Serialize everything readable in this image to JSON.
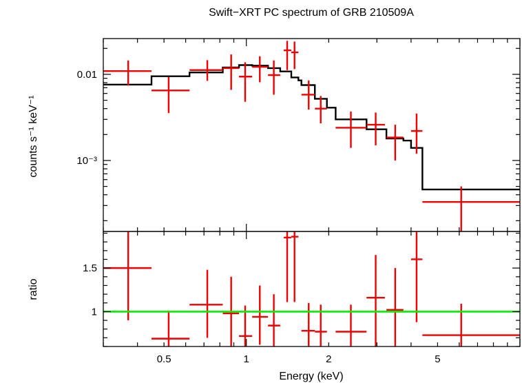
{
  "chart_data": [
    {
      "type": "scatter",
      "title": "Swift−XRT PC spectrum of GRB 210509A",
      "ylabel": "counts s⁻¹ keV⁻¹",
      "xlabel": "",
      "xscale": "log",
      "yscale": "log",
      "xlim": [
        0.3,
        10
      ],
      "ylim": [
        0.00015,
        0.026
      ],
      "yticks": [
        {
          "value": 0.01,
          "label": "0.01"
        },
        {
          "value": 0.001,
          "label": "10⁻³"
        }
      ],
      "series": [
        {
          "role": "data",
          "color": "#ee0000",
          "points": [
            {
              "x": 0.37,
              "xlo": 0.3,
              "xhi": 0.45,
              "y": 0.0109,
              "ylo": 0.0074,
              "yhi": 0.0145
            },
            {
              "x": 0.52,
              "xlo": 0.45,
              "xhi": 0.62,
              "y": 0.0065,
              "ylo": 0.00355,
              "yhi": 0.0093
            },
            {
              "x": 0.72,
              "xlo": 0.62,
              "xhi": 0.82,
              "y": 0.0112,
              "ylo": 0.0084,
              "yhi": 0.0146
            },
            {
              "x": 0.88,
              "xlo": 0.82,
              "xhi": 0.94,
              "y": 0.0118,
              "ylo": 0.0066,
              "yhi": 0.017
            },
            {
              "x": 0.99,
              "xlo": 0.94,
              "xhi": 1.05,
              "y": 0.0094,
              "ylo": 0.0048,
              "yhi": 0.0138
            },
            {
              "x": 1.12,
              "xlo": 1.05,
              "xhi": 1.2,
              "y": 0.0122,
              "ylo": 0.0081,
              "yhi": 0.0162
            },
            {
              "x": 1.26,
              "xlo": 1.2,
              "xhi": 1.33,
              "y": 0.0098,
              "ylo": 0.0058,
              "yhi": 0.0145
            },
            {
              "x": 1.41,
              "xlo": 1.37,
              "xhi": 1.46,
              "y": 0.019,
              "ylo": 0.0112,
              "yhi": 0.0245
            },
            {
              "x": 1.5,
              "xlo": 1.46,
              "xhi": 1.55,
              "y": 0.018,
              "ylo": 0.0115,
              "yhi": 0.024
            },
            {
              "x": 1.69,
              "xlo": 1.59,
              "xhi": 1.78,
              "y": 0.0058,
              "ylo": 0.0039,
              "yhi": 0.0085
            },
            {
              "x": 1.87,
              "xlo": 1.78,
              "xhi": 1.97,
              "y": 0.004,
              "ylo": 0.0027,
              "yhi": 0.0056
            },
            {
              "x": 2.41,
              "xlo": 2.12,
              "xhi": 2.75,
              "y": 0.0024,
              "ylo": 0.0014,
              "yhi": 0.0037
            },
            {
              "x": 2.97,
              "xlo": 2.75,
              "xhi": 3.21,
              "y": 0.0026,
              "ylo": 0.0015,
              "yhi": 0.0036
            },
            {
              "x": 3.5,
              "xlo": 3.25,
              "xhi": 3.75,
              "y": 0.00185,
              "ylo": 0.001,
              "yhi": 0.0026
            },
            {
              "x": 4.19,
              "xlo": 4.0,
              "xhi": 4.4,
              "y": 0.0022,
              "ylo": 0.0012,
              "yhi": 0.0035
            },
            {
              "x": 6.1,
              "xlo": 4.4,
              "xhi": 10.0,
              "y": 0.00033,
              "ylo": 0.00015,
              "yhi": 0.0005
            }
          ]
        },
        {
          "role": "model",
          "color": "#000000",
          "steps": [
            {
              "x0": 0.3,
              "x1": 0.45,
              "y": 0.0076
            },
            {
              "x0": 0.45,
              "x1": 0.62,
              "y": 0.0095
            },
            {
              "x0": 0.62,
              "x1": 0.82,
              "y": 0.0105
            },
            {
              "x0": 0.82,
              "x1": 0.94,
              "y": 0.012
            },
            {
              "x0": 0.94,
              "x1": 1.05,
              "y": 0.0128
            },
            {
              "x0": 1.05,
              "x1": 1.2,
              "y": 0.0126
            },
            {
              "x0": 1.2,
              "x1": 1.33,
              "y": 0.0118
            },
            {
              "x0": 1.33,
              "x1": 1.46,
              "y": 0.0108
            },
            {
              "x0": 1.46,
              "x1": 1.55,
              "y": 0.0092
            },
            {
              "x0": 1.55,
              "x1": 1.59,
              "y": 0.0085
            },
            {
              "x0": 1.59,
              "x1": 1.78,
              "y": 0.0075
            },
            {
              "x0": 1.78,
              "x1": 1.97,
              "y": 0.0052
            },
            {
              "x0": 1.97,
              "x1": 2.12,
              "y": 0.0041
            },
            {
              "x0": 2.12,
              "x1": 2.75,
              "y": 0.003
            },
            {
              "x0": 2.75,
              "x1": 3.25,
              "y": 0.0023
            },
            {
              "x0": 3.25,
              "x1": 3.75,
              "y": 0.0018
            },
            {
              "x0": 3.75,
              "x1": 4.0,
              "y": 0.0017
            },
            {
              "x0": 4.0,
              "x1": 4.4,
              "y": 0.0014
            },
            {
              "x0": 4.4,
              "x1": 10.0,
              "y": 0.00046
            }
          ]
        }
      ]
    },
    {
      "type": "scatter",
      "title": "",
      "ylabel": "ratio",
      "xlabel": "Energy (keV)",
      "xscale": "log",
      "yscale": "linear",
      "xlim": [
        0.3,
        10
      ],
      "ylim": [
        0.6,
        1.92
      ],
      "xticks": [
        {
          "value": 0.5,
          "label": "0.5"
        },
        {
          "value": 1,
          "label": "1"
        },
        {
          "value": 2,
          "label": "2"
        },
        {
          "value": 5,
          "label": "5"
        }
      ],
      "yticks": [
        {
          "value": 1,
          "label": "1"
        },
        {
          "value": 1.5,
          "label": "1.5"
        }
      ],
      "reference_line": {
        "y": 1.0,
        "color": "#00ee00"
      },
      "series": [
        {
          "role": "ratio",
          "color": "#ee0000",
          "points": [
            {
              "x": 0.37,
              "xlo": 0.3,
              "xhi": 0.45,
              "y": 1.5,
              "ylo": 0.9,
              "yhi": 1.95
            },
            {
              "x": 0.52,
              "xlo": 0.45,
              "xhi": 0.62,
              "y": 0.69,
              "ylo": 0.6,
              "yhi": 1.01
            },
            {
              "x": 0.72,
              "xlo": 0.62,
              "xhi": 0.82,
              "y": 1.08,
              "ylo": 0.7,
              "yhi": 1.48
            },
            {
              "x": 0.88,
              "xlo": 0.82,
              "xhi": 0.94,
              "y": 0.98,
              "ylo": 0.6,
              "yhi": 1.4
            },
            {
              "x": 0.99,
              "xlo": 0.94,
              "xhi": 1.05,
              "y": 0.72,
              "ylo": 0.6,
              "yhi": 1.07
            },
            {
              "x": 1.12,
              "xlo": 1.05,
              "xhi": 1.2,
              "y": 0.94,
              "ylo": 0.62,
              "yhi": 1.3
            },
            {
              "x": 1.26,
              "xlo": 1.2,
              "xhi": 1.33,
              "y": 0.84,
              "ylo": 0.6,
              "yhi": 1.2
            },
            {
              "x": 1.41,
              "xlo": 1.37,
              "xhi": 1.46,
              "y": 1.85,
              "ylo": 1.11,
              "yhi": 1.92
            },
            {
              "x": 1.5,
              "xlo": 1.46,
              "xhi": 1.55,
              "y": 1.86,
              "ylo": 1.11,
              "yhi": 1.92
            },
            {
              "x": 1.69,
              "xlo": 1.59,
              "xhi": 1.78,
              "y": 0.78,
              "ylo": 0.6,
              "yhi": 1.1
            },
            {
              "x": 1.87,
              "xlo": 1.78,
              "xhi": 1.97,
              "y": 0.77,
              "ylo": 0.6,
              "yhi": 1.08
            },
            {
              "x": 2.41,
              "xlo": 2.12,
              "xhi": 2.75,
              "y": 0.77,
              "ylo": 0.6,
              "yhi": 1.08
            },
            {
              "x": 2.97,
              "xlo": 2.75,
              "xhi": 3.21,
              "y": 1.16,
              "ylo": 0.6,
              "yhi": 1.65
            },
            {
              "x": 3.5,
              "xlo": 3.25,
              "xhi": 3.75,
              "y": 1.02,
              "ylo": 0.6,
              "yhi": 1.5
            },
            {
              "x": 4.19,
              "xlo": 4.0,
              "xhi": 4.4,
              "y": 1.6,
              "ylo": 0.88,
              "yhi": 2.0
            },
            {
              "x": 6.1,
              "xlo": 4.4,
              "xhi": 10.0,
              "y": 0.73,
              "ylo": 0.6,
              "yhi": 1.09
            }
          ]
        }
      ]
    }
  ]
}
